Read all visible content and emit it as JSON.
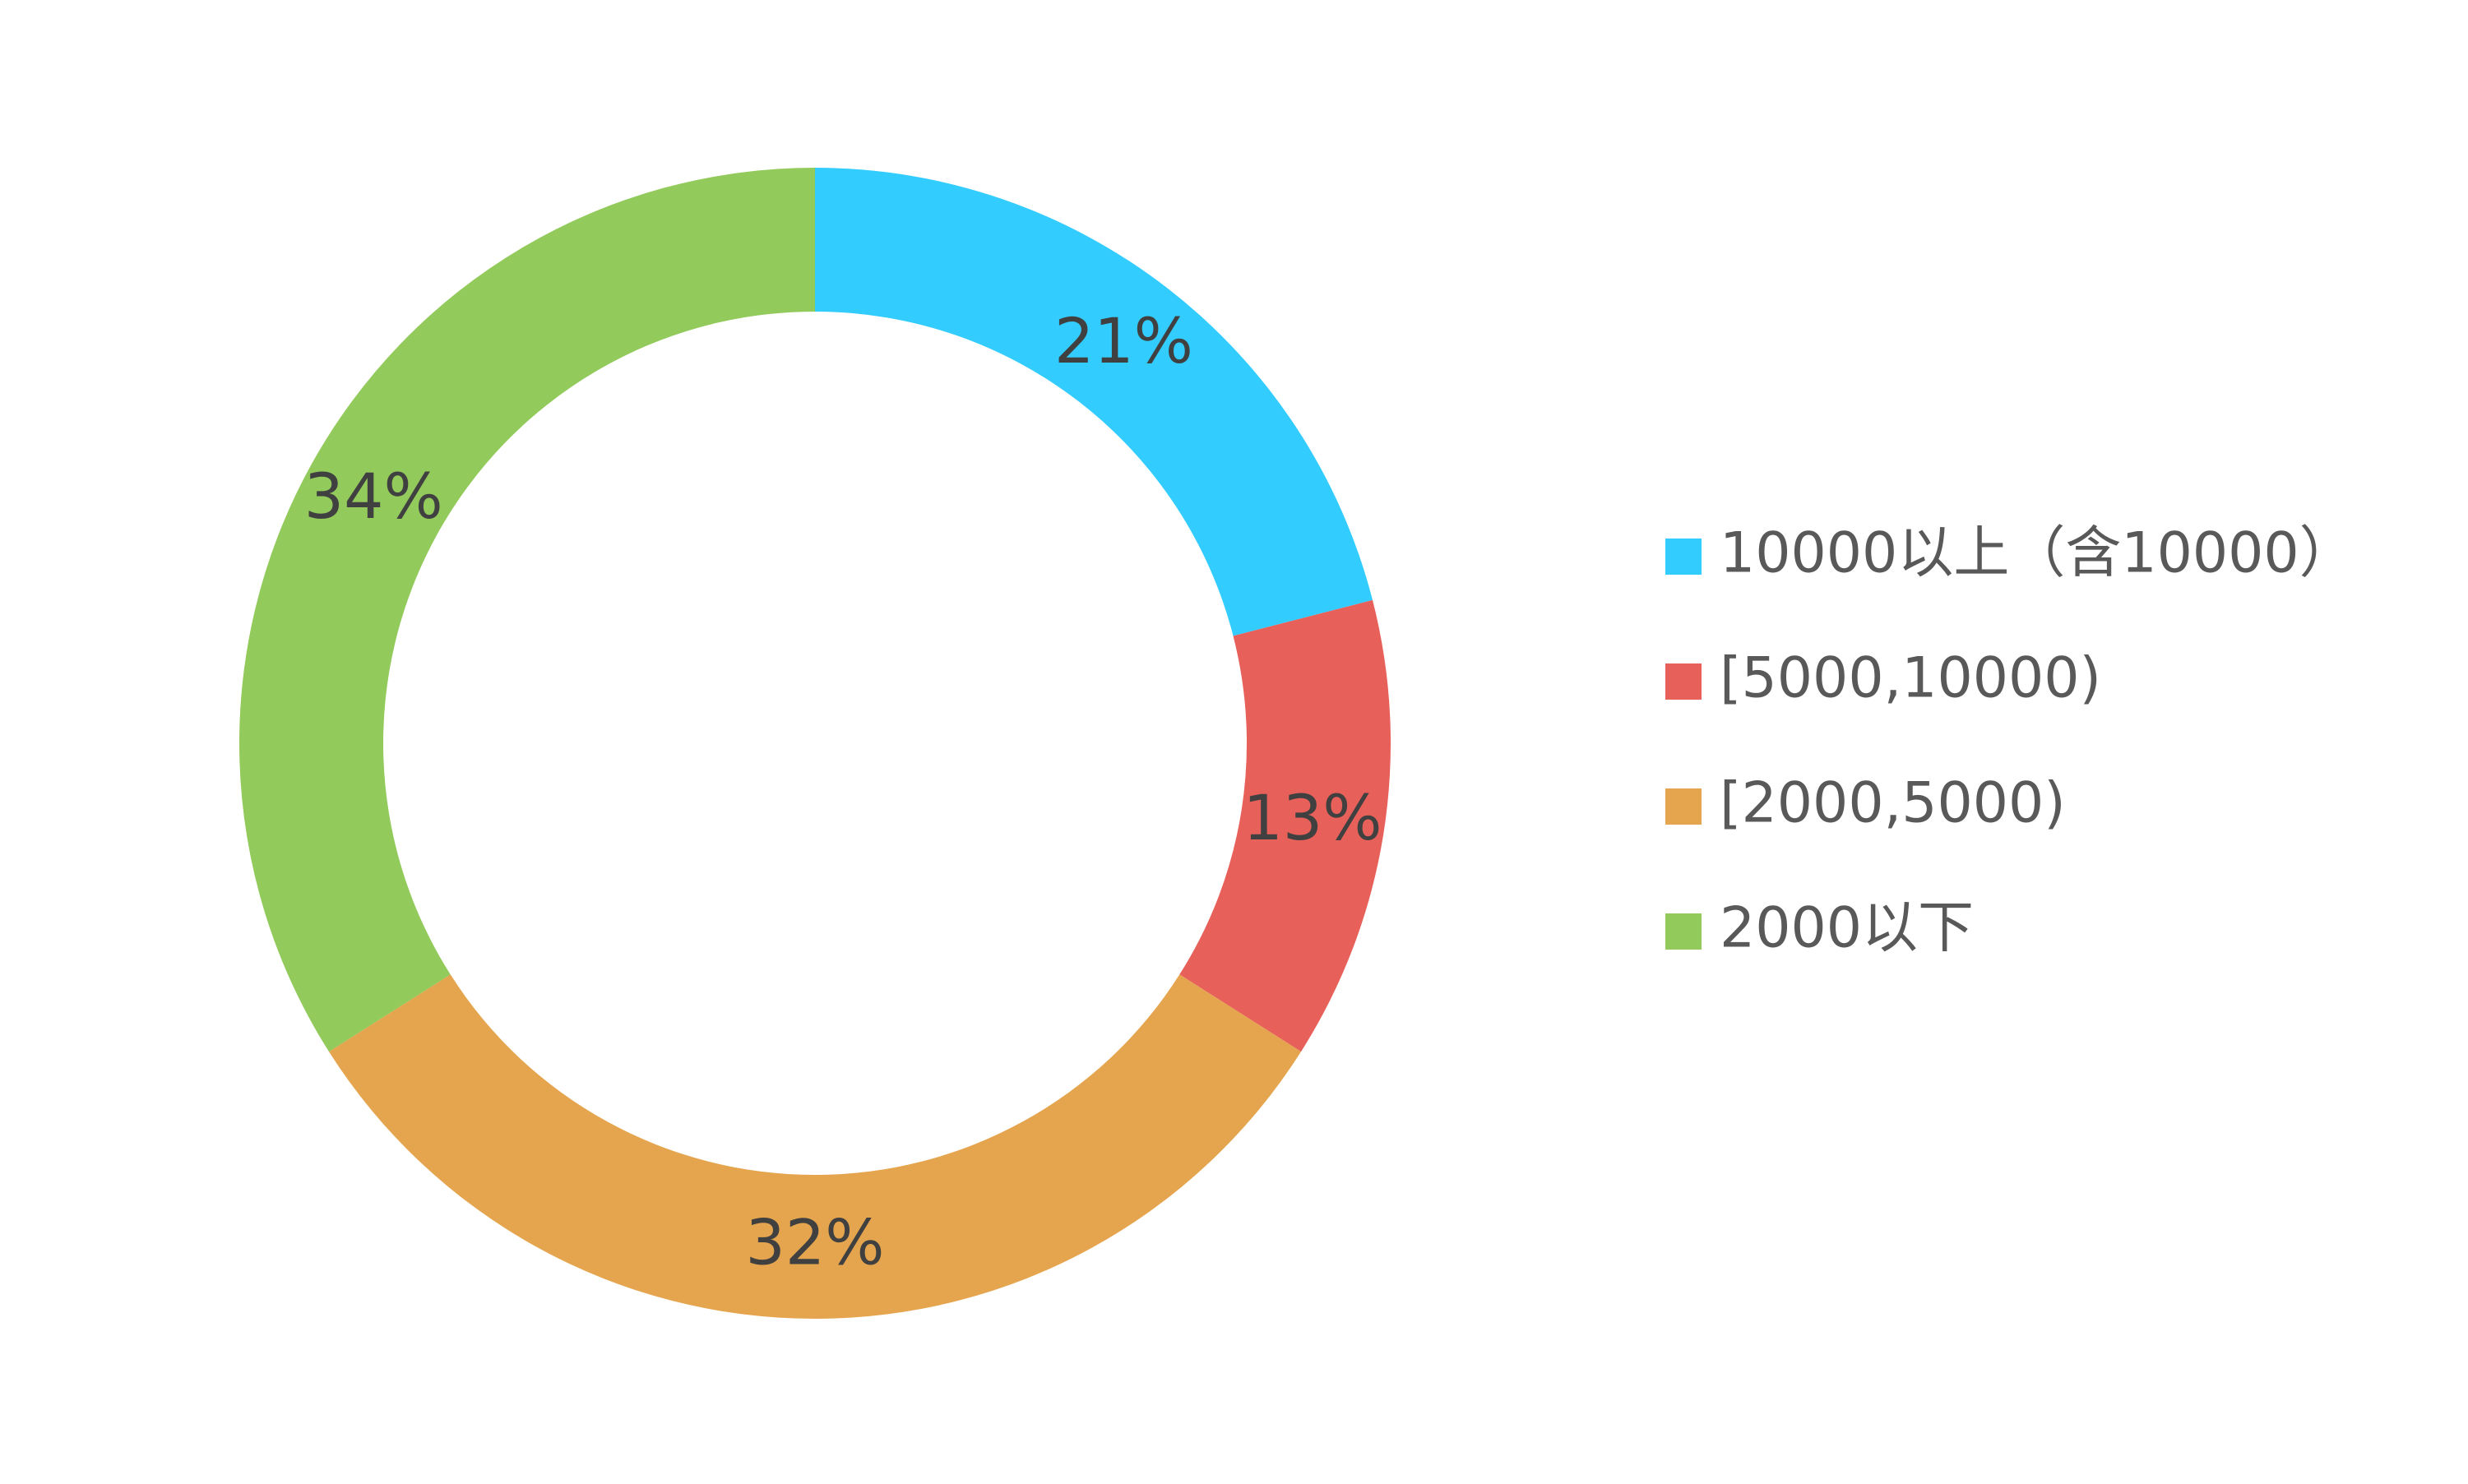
{
  "chart_data": {
    "type": "donut",
    "categories": [
      "10000以上（含10000）",
      "[5000,10000)",
      "[2000,5000)",
      "2000以下"
    ],
    "values": [
      21,
      13,
      32,
      34
    ],
    "value_labels": [
      "21%",
      "13%",
      "32%",
      "34%"
    ],
    "colors": [
      "#33CCFF",
      "#E8605A",
      "#E5A54F",
      "#92CA5B"
    ],
    "legend": "right"
  }
}
